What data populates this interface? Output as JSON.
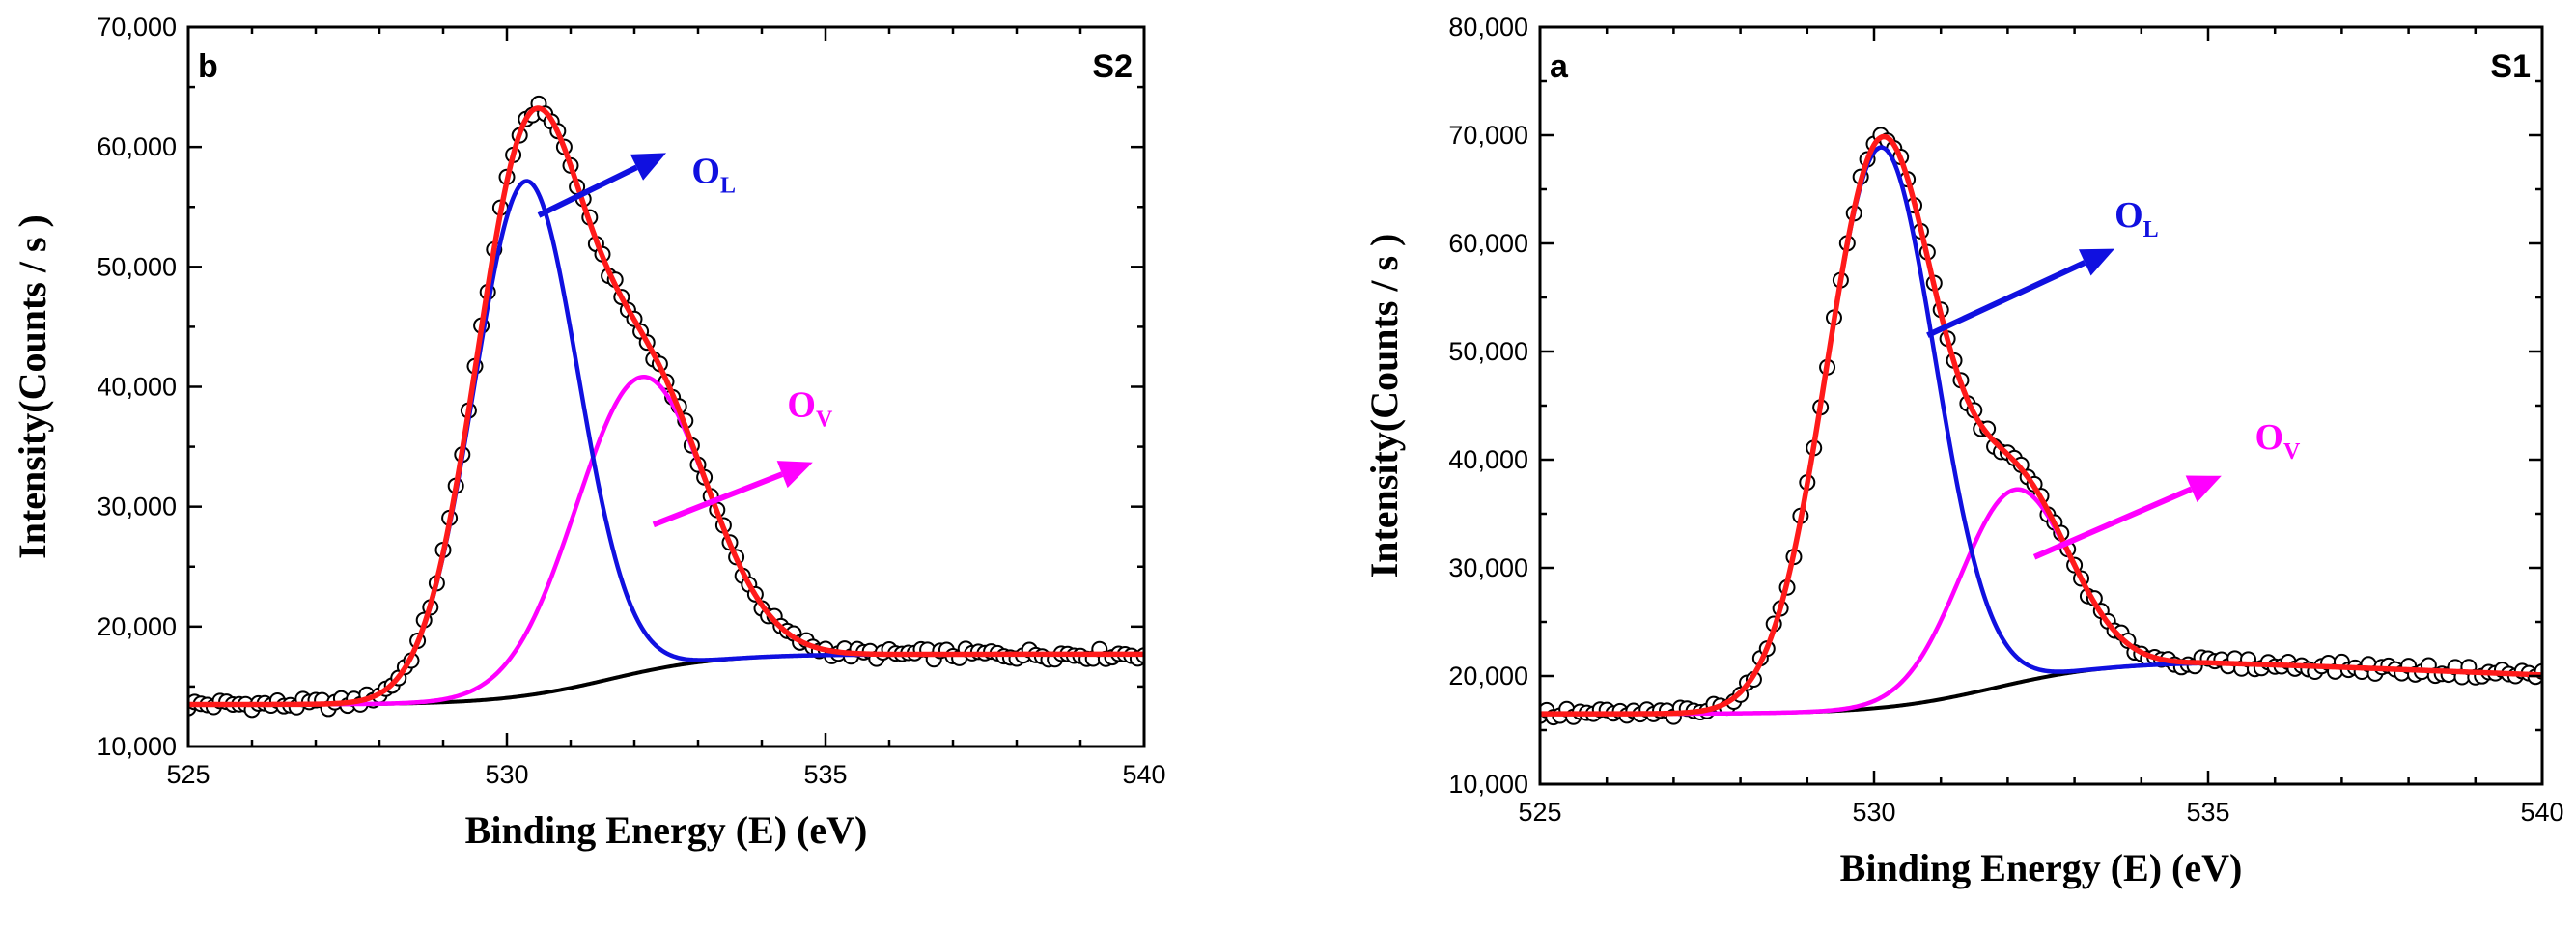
{
  "colors": {
    "data": "#000000",
    "fit": "#ff1a1a",
    "ol": "#1010e0",
    "ov": "#ff00ff",
    "background": "#000000"
  },
  "chart_data": [
    {
      "type": "line",
      "panel_label": "b",
      "sample_label": "S2",
      "xlabel": "Binding Energy (E) (eV)",
      "ylabel": "Intensity(Counts / s )",
      "xlim": [
        525,
        540
      ],
      "ylim": [
        10000,
        70000
      ],
      "x_ticks": [
        525,
        530,
        535,
        540
      ],
      "x_tick_labels": [
        "525",
        "530",
        "535",
        "540"
      ],
      "y_ticks": [
        10000,
        20000,
        30000,
        40000,
        50000,
        60000,
        70000
      ],
      "y_tick_labels": [
        "10,000",
        "20,000",
        "30,000",
        "40,000",
        "50,000",
        "60,000",
        "70,000"
      ],
      "peak_labels": {
        "ol": {
          "main": "O",
          "sub": "L"
        },
        "ov": {
          "main": "O",
          "sub": "V"
        }
      },
      "arrows": {
        "ol": {
          "from": [
            530.5,
            54300
          ],
          "to": [
            532.5,
            59500
          ]
        },
        "ov": {
          "from": [
            532.3,
            28500
          ],
          "to": [
            534.8,
            33700
          ]
        }
      },
      "label_positions": {
        "ol": [
          532.9,
          57000
        ],
        "ov": [
          534.4,
          37500
        ]
      },
      "components": {
        "ol": {
          "center": 530.3,
          "amplitude": 42900,
          "sigma": 0.82
        },
        "ov": {
          "center": 532.1,
          "amplitude": 24600,
          "sigma": 1.02
        }
      },
      "background_curve": {
        "low": 13500,
        "high": 17700,
        "center": 531.6,
        "width": 0.85
      },
      "series": [
        {
          "role": "data",
          "kind": "markers",
          "x_start": 525.0,
          "x_end": 540.0,
          "x_step": 0.1,
          "noise": 450
        },
        {
          "role": "fit",
          "kind": "line"
        },
        {
          "role": "ol",
          "kind": "line"
        },
        {
          "role": "ov",
          "kind": "line"
        },
        {
          "role": "background",
          "kind": "line"
        }
      ]
    },
    {
      "type": "line",
      "panel_label": "a",
      "sample_label": "S1",
      "xlabel": "Binding Energy (E) (eV)",
      "ylabel": "Intensity(Counts / s )",
      "xlim": [
        525,
        540
      ],
      "ylim": [
        10000,
        80000
      ],
      "x_ticks": [
        525,
        530,
        535,
        540
      ],
      "x_tick_labels": [
        "525",
        "530",
        "535",
        "540"
      ],
      "y_ticks": [
        10000,
        20000,
        30000,
        40000,
        50000,
        60000,
        70000,
        80000
      ],
      "y_tick_labels": [
        "10,000",
        "20,000",
        "30,000",
        "40,000",
        "50,000",
        "60,000",
        "70,000",
        "80,000"
      ],
      "peak_labels": {
        "ol": {
          "main": "O",
          "sub": "L"
        },
        "ov": {
          "main": "O",
          "sub": "V"
        }
      },
      "arrows": {
        "ol": {
          "from": [
            530.8,
            51500
          ],
          "to": [
            533.6,
            59500
          ]
        },
        "ov": {
          "from": [
            532.4,
            31000
          ],
          "to": [
            535.2,
            38500
          ]
        }
      },
      "label_positions": {
        "ol": [
          533.6,
          61500
        ],
        "ov": [
          535.7,
          41000
        ]
      },
      "components": {
        "ol": {
          "center": 530.1,
          "amplitude": 51800,
          "sigma": 0.82
        },
        "ov": {
          "center": 532.1,
          "amplitude": 17900,
          "sigma": 0.82
        }
      },
      "background_curve": {
        "low": 16500,
        "high": 21300,
        "center": 531.8,
        "width": 0.85
      },
      "decline": {
        "start": 535,
        "slope": -240
      },
      "series": [
        {
          "role": "data",
          "kind": "markers",
          "x_start": 525.0,
          "x_end": 540.0,
          "x_step": 0.1,
          "noise": 500
        },
        {
          "role": "fit",
          "kind": "line"
        },
        {
          "role": "ol",
          "kind": "line"
        },
        {
          "role": "ov",
          "kind": "line"
        },
        {
          "role": "background",
          "kind": "line"
        }
      ]
    }
  ]
}
